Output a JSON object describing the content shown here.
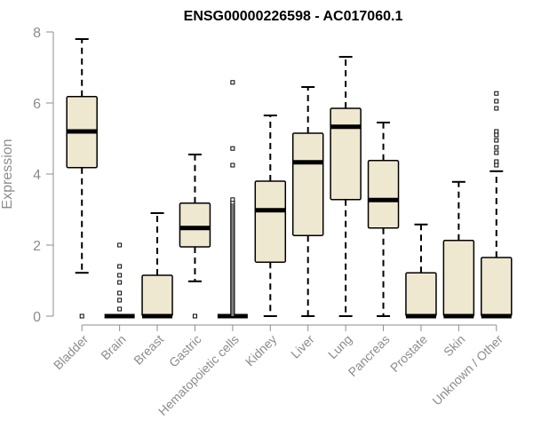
{
  "chart_data": {
    "type": "box",
    "title": "ENSG00000226598 - AC017060.1",
    "ylabel": "Expression",
    "xlabel": "",
    "ylim": [
      0,
      8
    ],
    "yticks": [
      0,
      2,
      4,
      6,
      8
    ],
    "grid": false,
    "colors": {
      "box_fill": "#efe8d0",
      "box_stroke": "#000000",
      "axis": "#8c8c8c"
    },
    "categories": [
      "Bladder",
      "Brain",
      "Breast",
      "Gastric",
      "Hematopoietic cells",
      "Kidney",
      "Liver",
      "Lung",
      "Pancreas",
      "Prostate",
      "Skin",
      "Unknown / Other"
    ],
    "boxes": [
      {
        "q1": 4.18,
        "median": 5.2,
        "q3": 6.18,
        "whisker_low": 1.22,
        "whisker_high": 7.8,
        "outliers": [
          0
        ]
      },
      {
        "q1": 0,
        "median": 0,
        "q3": 0,
        "whisker_low": 0,
        "whisker_high": 0,
        "outliers": [
          0.2,
          0.45,
          0.65,
          0.95,
          1.15,
          1.4,
          2.0
        ]
      },
      {
        "q1": 0,
        "median": 0,
        "q3": 1.15,
        "whisker_low": 0,
        "whisker_high": 2.9,
        "outliers": []
      },
      {
        "q1": 1.95,
        "median": 2.48,
        "q3": 3.18,
        "whisker_low": 0.98,
        "whisker_high": 4.55,
        "outliers": [
          0
        ]
      },
      {
        "q1": 0,
        "median": 0,
        "q3": 0,
        "whisker_low": 0,
        "whisker_high": 0,
        "outliers": [
          0.05,
          0.1,
          0.15,
          0.2,
          0.25,
          0.3,
          0.35,
          0.4,
          0.45,
          0.5,
          0.55,
          0.6,
          0.65,
          0.7,
          0.75,
          0.8,
          0.85,
          0.9,
          0.95,
          1.0,
          1.05,
          1.1,
          1.15,
          1.2,
          1.25,
          1.3,
          1.35,
          1.4,
          1.45,
          1.5,
          1.55,
          1.6,
          1.65,
          1.7,
          1.75,
          1.8,
          1.85,
          1.9,
          1.95,
          2.0,
          2.05,
          2.1,
          2.15,
          2.2,
          2.25,
          2.3,
          2.35,
          2.4,
          2.45,
          2.5,
          2.55,
          2.6,
          2.65,
          2.7,
          2.75,
          2.8,
          2.85,
          2.9,
          2.95,
          3.0,
          3.05,
          3.1,
          3.15,
          3.2,
          3.28,
          4.25,
          4.72,
          6.58
        ]
      },
      {
        "q1": 1.52,
        "median": 2.98,
        "q3": 3.8,
        "whisker_low": 0,
        "whisker_high": 5.65,
        "outliers": []
      },
      {
        "q1": 2.27,
        "median": 4.33,
        "q3": 5.15,
        "whisker_low": 0,
        "whisker_high": 6.45,
        "outliers": []
      },
      {
        "q1": 3.28,
        "median": 5.33,
        "q3": 5.85,
        "whisker_low": 0,
        "whisker_high": 7.3,
        "outliers": []
      },
      {
        "q1": 2.48,
        "median": 3.27,
        "q3": 4.38,
        "whisker_low": 0,
        "whisker_high": 5.45,
        "outliers": []
      },
      {
        "q1": 0,
        "median": 0,
        "q3": 1.22,
        "whisker_low": 0,
        "whisker_high": 2.58,
        "outliers": []
      },
      {
        "q1": 0,
        "median": 0,
        "q3": 2.13,
        "whisker_low": 0,
        "whisker_high": 3.78,
        "outliers": []
      },
      {
        "q1": 0,
        "median": 0,
        "q3": 1.65,
        "whisker_low": 0,
        "whisker_high": 4.08,
        "outliers": [
          4.25,
          4.35,
          4.6,
          4.75,
          4.95,
          5.1,
          5.2,
          5.85,
          6.05,
          6.27
        ]
      }
    ]
  }
}
